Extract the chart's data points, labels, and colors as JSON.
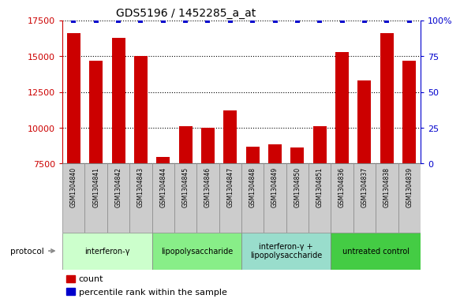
{
  "title": "GDS5196 / 1452285_a_at",
  "samples": [
    "GSM1304840",
    "GSM1304841",
    "GSM1304842",
    "GSM1304843",
    "GSM1304844",
    "GSM1304845",
    "GSM1304846",
    "GSM1304847",
    "GSM1304848",
    "GSM1304849",
    "GSM1304850",
    "GSM1304851",
    "GSM1304836",
    "GSM1304837",
    "GSM1304838",
    "GSM1304839"
  ],
  "counts": [
    16600,
    14700,
    16300,
    15000,
    7950,
    10100,
    10000,
    11200,
    8700,
    8850,
    8650,
    10100,
    15300,
    13300,
    16600,
    14700
  ],
  "ylim_left": [
    7500,
    17500
  ],
  "ylim_right": [
    0,
    100
  ],
  "yticks_left": [
    7500,
    10000,
    12500,
    15000,
    17500
  ],
  "yticks_right": [
    0,
    25,
    50,
    75,
    100
  ],
  "bar_color": "#cc0000",
  "dot_color": "#0000cc",
  "bar_width": 0.6,
  "groups": [
    {
      "label": "interferon-γ",
      "start": 0,
      "end": 4,
      "color": "#ccffcc"
    },
    {
      "label": "lipopolysaccharide",
      "start": 4,
      "end": 8,
      "color": "#88ee88"
    },
    {
      "label": "interferon-γ +\nlipopolysaccharide",
      "start": 8,
      "end": 12,
      "color": "#99ddcc"
    },
    {
      "label": "untreated control",
      "start": 12,
      "end": 16,
      "color": "#44cc44"
    }
  ],
  "protocol_label": "protocol",
  "legend_count_label": "count",
  "legend_pct_label": "percentile rank within the sample",
  "bar_color_hex": "#cc0000",
  "dot_color_hex": "#0000cc",
  "right_axis_color": "#0000cc",
  "left_axis_color": "#cc0000",
  "cell_color": "#cccccc",
  "cell_edge_color": "#888888"
}
